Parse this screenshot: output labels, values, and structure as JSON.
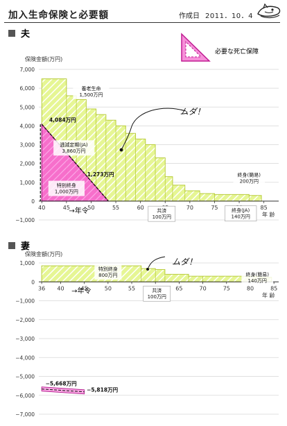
{
  "header": {
    "title": "加入生命保険と必要額",
    "date_label": "作成日",
    "date": "2011．10．4"
  },
  "icons": {
    "section_marker": "black-square-icon",
    "legend_swatch": "pink-triangle-icon",
    "mascot": "cartoon-mascot-icon"
  },
  "colors": {
    "insurance_fill": "#e4f58e",
    "insurance_stroke": "#b8cc3c",
    "needed_fill": "#f75fcf",
    "needed_stroke": "#b0168a"
  },
  "legend": {
    "needed_label": "必要な死亡保障"
  },
  "chart_data": [
    {
      "type": "area",
      "section_label": "夫",
      "ylabel": "保険金額(万円)",
      "xlabel": "年 齢",
      "ylim": [
        -1000,
        7000
      ],
      "xlim": [
        39.4,
        88
      ],
      "y_ticks": [
        "7,000",
        "6,000",
        "5,000",
        "4,000",
        "3,000",
        "2,000",
        "1,000",
        "0",
        "−1,000"
      ],
      "x_ticks": [
        "40",
        "45",
        "50",
        "55",
        "60",
        "65",
        "70",
        "75",
        "80",
        "85"
      ],
      "grid": true,
      "series": [
        {
          "name": "加入保険",
          "kind": "step",
          "points": [
            [
              40,
              6500
            ],
            [
              45,
              5600
            ],
            [
              47,
              5400
            ],
            [
              49,
              4900
            ],
            [
              51,
              4600
            ],
            [
              53,
              4300
            ],
            [
              55,
              4000
            ],
            [
              57,
              3600
            ],
            [
              59,
              3300
            ],
            [
              61,
              3000
            ],
            [
              63,
              2300
            ],
            [
              65,
              1300
            ],
            [
              66.5,
              850
            ],
            [
              69,
              550
            ],
            [
              72,
              400
            ],
            [
              75,
              350
            ],
            [
              82,
              300
            ]
          ]
        },
        {
          "name": "必要な死亡保障",
          "kind": "line",
          "points": [
            [
              40,
              4084
            ],
            [
              53.5,
              0
            ]
          ]
        }
      ],
      "annotations": [
        {
          "text": "養老生命",
          "sub": "1,500万円",
          "x": 50,
          "y": 5900
        },
        {
          "text": "逓減定期(JA)",
          "sub": "3,860万円",
          "x": 46.5,
          "y": 2900
        },
        {
          "text": "特別終身",
          "sub": "1,000万円",
          "x": 45,
          "y": 750
        },
        {
          "text": "4,084万円",
          "x": 41.5,
          "y": 4220
        },
        {
          "text": "1,273万円",
          "x": 49.2,
          "y": 1330
        },
        {
          "text": "ムダ！",
          "x": 68,
          "y": 4600
        },
        {
          "text": "終身(簡易)",
          "sub": "200万円",
          "x": 82,
          "y": 1300
        },
        {
          "text": "共済",
          "sub": "100万円",
          "x": 64.3,
          "y": -600
        },
        {
          "text": "終身(JA)",
          "sub": "140万円",
          "x": 80.3,
          "y": -580
        },
        {
          "text": "→年令",
          "x": 45.5,
          "y": -640
        }
      ]
    },
    {
      "type": "area",
      "section_label": "妻",
      "ylabel": "保険金額(万円)",
      "xlabel": "年 齢",
      "ylim": [
        -7000,
        1000
      ],
      "xlim": [
        35.4,
        86
      ],
      "y_ticks": [
        "1,000",
        "0",
        "−1,000",
        "−2,000",
        "−3,000",
        "−4,000",
        "−5,000",
        "−6,000",
        "−7,000"
      ],
      "x_ticks": [
        "36",
        "40",
        "45",
        "50",
        "55",
        "60",
        "65",
        "70",
        "75",
        "80",
        "85"
      ],
      "grid": true,
      "series": [
        {
          "name": "加入保険",
          "kind": "step",
          "points": [
            [
              36,
              850
            ],
            [
              57,
              700
            ],
            [
              60,
              650
            ],
            [
              62,
              400
            ],
            [
              67,
              300
            ],
            [
              70,
              300
            ],
            [
              82,
              250
            ]
          ]
        },
        {
          "name": "必要な死亡保障",
          "kind": "line",
          "points": [
            [
              36,
              -5668
            ],
            [
              45,
              -5818
            ]
          ]
        }
      ],
      "annotations": [
        {
          "text": "特別終身",
          "sub": "800万円",
          "x": 50,
          "y": 600
        },
        {
          "text": "ムダ！",
          "x": 63.5,
          "y": 900
        },
        {
          "text": "終身(簡易)",
          "sub": "140万円",
          "x": 81.5,
          "y": 300
        },
        {
          "text": "共済",
          "sub": "100万円",
          "x": 60.3,
          "y": -550
        },
        {
          "text": "→年令",
          "x": 42.3,
          "y": -600
        },
        {
          "text": "−5,668万円",
          "x": 36.8,
          "y": -5470
        },
        {
          "text": "−5,818万円",
          "x": 45.5,
          "y": -5810
        }
      ]
    }
  ]
}
